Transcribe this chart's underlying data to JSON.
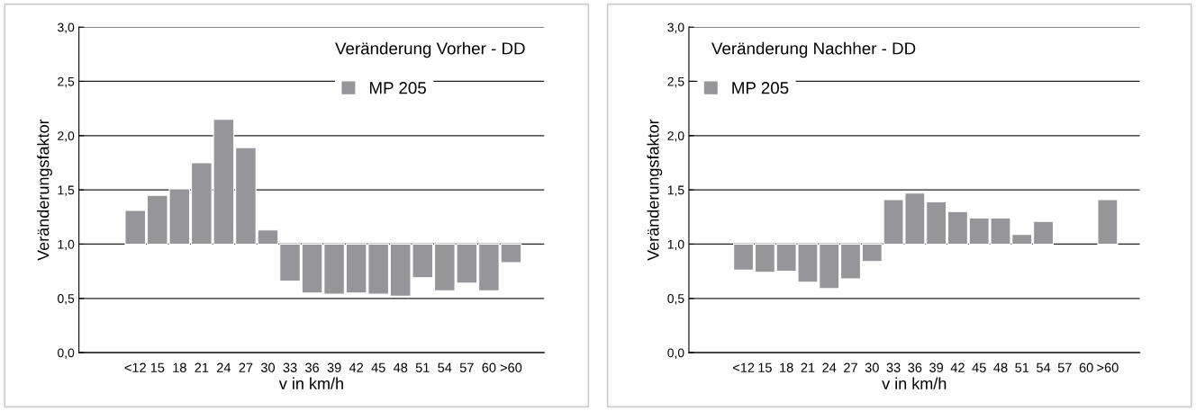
{
  "chart_data": [
    {
      "type": "bar",
      "title": "Veränderung Vorher - DD",
      "xlabel": "v in km/h",
      "ylabel": "Veränderungsfaktor",
      "categories": [
        "<12",
        "15",
        "18",
        "21",
        "24",
        "27",
        "30",
        "33",
        "36",
        "39",
        "42",
        "45",
        "48",
        "51",
        "54",
        "57",
        "60",
        ">60"
      ],
      "series": [
        {
          "name": "MP 205",
          "color": "#96959a",
          "base": [
            1,
            1,
            1,
            1,
            1,
            1,
            1,
            1,
            1,
            1,
            1,
            1,
            1,
            1,
            1,
            1,
            1,
            1
          ],
          "values": [
            0.31,
            0.45,
            0.51,
            0.75,
            1.15,
            0.89,
            0.13,
            -0.34,
            -0.45,
            -0.46,
            -0.45,
            -0.46,
            -0.48,
            -0.31,
            -0.43,
            -0.36,
            -0.43,
            -0.17
          ]
        }
      ],
      "ylim": [
        0,
        3
      ],
      "yticks": [
        {
          "value": 0,
          "label": "0,0"
        },
        {
          "value": 0.5,
          "label": "0,5"
        },
        {
          "value": 1,
          "label": "1,0"
        },
        {
          "value": 1.5,
          "label": "1,5"
        },
        {
          "value": 2,
          "label": "2,0"
        },
        {
          "value": 2.5,
          "label": "2,5"
        },
        {
          "value": 3,
          "label": "3,0"
        }
      ],
      "grid": "y",
      "legend": "top right"
    },
    {
      "type": "bar",
      "title": "Veränderung Nachher - DD",
      "xlabel": "v in km/h",
      "ylabel": "Veränderungsfaktor",
      "categories": [
        "<12",
        "15",
        "18",
        "21",
        "24",
        "27",
        "30",
        "33",
        "36",
        "39",
        "42",
        "45",
        "48",
        "51",
        "54",
        "57",
        "60",
        ">60"
      ],
      "series": [
        {
          "name": "MP 205",
          "color": "#96959a",
          "base": [
            1,
            1,
            1,
            1,
            1,
            1,
            1,
            1,
            1,
            1,
            1,
            1,
            1,
            1,
            1,
            null,
            null,
            1
          ],
          "values": [
            -0.24,
            -0.26,
            -0.25,
            -0.35,
            -0.41,
            -0.32,
            -0.16,
            0.41,
            0.47,
            0.39,
            0.3,
            0.24,
            0.24,
            0.09,
            0.21,
            null,
            null,
            0.41
          ]
        }
      ],
      "ylim": [
        0,
        3
      ],
      "yticks": [
        {
          "value": 0,
          "label": "0,0"
        },
        {
          "value": 0.5,
          "label": "0,5"
        },
        {
          "value": 1,
          "label": "1,0"
        },
        {
          "value": 1.5,
          "label": "1,5"
        },
        {
          "value": 2,
          "label": "2,0"
        },
        {
          "value": 2.5,
          "label": "2,5"
        },
        {
          "value": 3,
          "label": "3,0"
        }
      ],
      "grid": "y",
      "legend": "top left"
    }
  ]
}
